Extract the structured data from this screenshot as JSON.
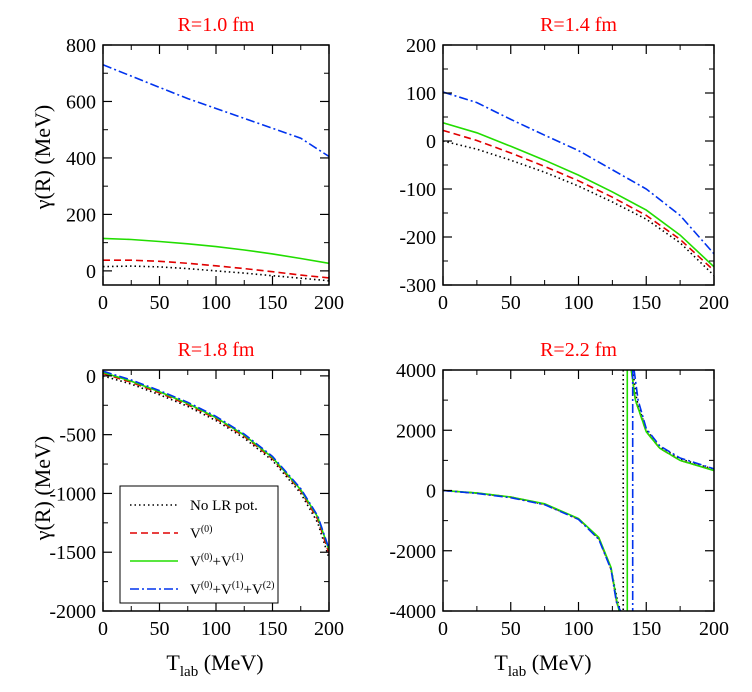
{
  "chart_data": [
    {
      "type": "line",
      "title": "R=1.0 fm",
      "xlabel": "",
      "ylabel": "γ(R) (MeV)",
      "xlim": [
        0,
        200
      ],
      "ylim": [
        -50,
        800
      ],
      "xticks": [
        0,
        50,
        100,
        150,
        200
      ],
      "yticks": [
        0,
        200,
        400,
        600,
        800
      ],
      "series": [
        {
          "name": "No LR pot.",
          "x": [
            0,
            25,
            50,
            75,
            100,
            125,
            150,
            175,
            200
          ],
          "y": [
            15,
            17,
            14,
            8,
            0,
            -8,
            -17,
            -26,
            -35
          ]
        },
        {
          "name": "V(0)",
          "x": [
            0,
            25,
            50,
            75,
            100,
            125,
            150,
            175,
            200
          ],
          "y": [
            38,
            38,
            34,
            27,
            18,
            8,
            -3,
            -15,
            -25
          ]
        },
        {
          "name": "V(0)+V(1)",
          "x": [
            0,
            25,
            50,
            75,
            100,
            125,
            150,
            175,
            200
          ],
          "y": [
            115,
            111,
            104,
            96,
            86,
            74,
            60,
            44,
            27
          ]
        },
        {
          "name": "V(0)+V(1)+V(2)",
          "x": [
            0,
            25,
            50,
            75,
            100,
            125,
            150,
            175,
            200
          ],
          "y": [
            730,
            690,
            650,
            610,
            575,
            540,
            505,
            470,
            405
          ]
        }
      ]
    },
    {
      "type": "line",
      "title": "R=1.4 fm",
      "xlabel": "",
      "ylabel": "",
      "xlim": [
        0,
        200
      ],
      "ylim": [
        -300,
        200
      ],
      "xticks": [
        0,
        50,
        100,
        150,
        200
      ],
      "yticks": [
        -300,
        -200,
        -100,
        0,
        100,
        200
      ],
      "series": [
        {
          "name": "No LR pot.",
          "x": [
            0,
            25,
            50,
            75,
            100,
            125,
            150,
            175,
            200
          ],
          "y": [
            0,
            -17,
            -40,
            -65,
            -94,
            -127,
            -163,
            -212,
            -280
          ]
        },
        {
          "name": "V(0)",
          "x": [
            0,
            25,
            50,
            75,
            100,
            125,
            150,
            175,
            200
          ],
          "y": [
            22,
            1,
            -25,
            -53,
            -83,
            -117,
            -155,
            -205,
            -270
          ]
        },
        {
          "name": "V(0)+V(1)",
          "x": [
            0,
            25,
            50,
            75,
            100,
            125,
            150,
            175,
            200
          ],
          "y": [
            38,
            17,
            -11,
            -40,
            -71,
            -106,
            -144,
            -196,
            -262
          ]
        },
        {
          "name": "V(0)+V(1)+V(2)",
          "x": [
            0,
            25,
            50,
            75,
            100,
            125,
            150,
            175,
            200
          ],
          "y": [
            102,
            80,
            45,
            12,
            -20,
            -60,
            -100,
            -155,
            -235
          ]
        }
      ]
    },
    {
      "type": "line",
      "title": "R=1.8 fm",
      "xlabel": "T_lab (MeV)",
      "ylabel": "γ(R) (MeV)",
      "xlim": [
        0,
        200
      ],
      "ylim": [
        -2000,
        50
      ],
      "xticks": [
        0,
        50,
        100,
        150,
        200
      ],
      "yticks": [
        -2000,
        -1500,
        -1000,
        -500,
        0
      ],
      "series": [
        {
          "name": "No LR pot.",
          "x": [
            0,
            25,
            50,
            75,
            100,
            125,
            150,
            175,
            190,
            200
          ],
          "y": [
            0,
            -70,
            -160,
            -260,
            -380,
            -530,
            -720,
            -1000,
            -1250,
            -1550
          ]
        },
        {
          "name": "V(0)",
          "x": [
            0,
            25,
            50,
            75,
            100,
            125,
            150,
            175,
            190,
            200
          ],
          "y": [
            20,
            -55,
            -145,
            -245,
            -365,
            -515,
            -705,
            -980,
            -1220,
            -1510
          ]
        },
        {
          "name": "V(0)+V(1)",
          "x": [
            0,
            25,
            50,
            75,
            100,
            125,
            150,
            175,
            190,
            200
          ],
          "y": [
            30,
            -45,
            -135,
            -235,
            -355,
            -505,
            -695,
            -970,
            -1200,
            -1480
          ]
        },
        {
          "name": "V(0)+V(1)+V(2)",
          "x": [
            0,
            25,
            50,
            75,
            100,
            125,
            150,
            175,
            190,
            200
          ],
          "y": [
            40,
            -35,
            -125,
            -225,
            -345,
            -495,
            -685,
            -960,
            -1190,
            -1470
          ]
        }
      ]
    },
    {
      "type": "line",
      "title": "R=2.2 fm",
      "xlabel": "T_lab (MeV)",
      "ylabel": "",
      "xlim": [
        0,
        200
      ],
      "ylim": [
        -4000,
        4000
      ],
      "xticks": [
        0,
        50,
        100,
        150,
        200
      ],
      "yticks": [
        -4000,
        -2000,
        0,
        2000,
        4000
      ],
      "asymptotes": [
        133,
        136,
        140
      ],
      "series": [
        {
          "name": "No LR pot.",
          "x": [
            0,
            25,
            50,
            75,
            100,
            115,
            124,
            129,
            131,
            null,
            140,
            143,
            150,
            160,
            175,
            200
          ],
          "y": [
            0,
            -90,
            -230,
            -460,
            -950,
            -1600,
            -2600,
            -3700,
            -4000,
            null,
            4000,
            3000,
            2000,
            1450,
            1050,
            700
          ]
        },
        {
          "name": "V(0)",
          "x": [
            0,
            25,
            50,
            75,
            100,
            115,
            124,
            128,
            130,
            null,
            139,
            142,
            150,
            160,
            175,
            200
          ],
          "y": [
            0,
            -85,
            -220,
            -450,
            -940,
            -1580,
            -2580,
            -3650,
            -4000,
            null,
            4000,
            3000,
            1950,
            1400,
            1000,
            670
          ]
        },
        {
          "name": "V(0)+V(1)",
          "x": [
            0,
            25,
            50,
            75,
            100,
            115,
            124,
            128,
            130,
            null,
            139,
            142,
            150,
            160,
            175,
            200
          ],
          "y": [
            0,
            -80,
            -215,
            -440,
            -930,
            -1560,
            -2550,
            -3600,
            -4000,
            null,
            4000,
            3000,
            1950,
            1400,
            1000,
            660
          ]
        },
        {
          "name": "V(0)+V(1)+V(2)",
          "x": [
            0,
            25,
            50,
            75,
            100,
            115,
            124,
            128,
            131,
            null,
            141,
            144,
            150,
            160,
            175,
            200
          ],
          "y": [
            0,
            -95,
            -240,
            -470,
            -960,
            -1620,
            -2620,
            -3700,
            -4000,
            null,
            4000,
            3000,
            2050,
            1480,
            1080,
            720
          ]
        }
      ]
    }
  ],
  "legend": {
    "items": [
      {
        "label": "No LR pot.",
        "color": "#000000",
        "dash": "1.5 3"
      },
      {
        "base": "V",
        "sup": "(0)",
        "color": "#e00000",
        "dash": "7 4"
      },
      {
        "base": "V",
        "sup": "(0)",
        "plus1": "+V",
        "sup1": "(1)",
        "color": "#22dd00",
        "dash": ""
      },
      {
        "base": "V",
        "sup": "(0)",
        "plus1": "+V",
        "sup1": "(1)",
        "plus2": "+V",
        "sup2": "(2)",
        "color": "#0033ee",
        "dash": "9 3 2 3"
      }
    ]
  },
  "axis_labels": {
    "y_left": "γ(R) (MeV)",
    "x_bottom_T": "T",
    "x_bottom_sub": "lab",
    "x_bottom_rest": " (MeV)"
  }
}
